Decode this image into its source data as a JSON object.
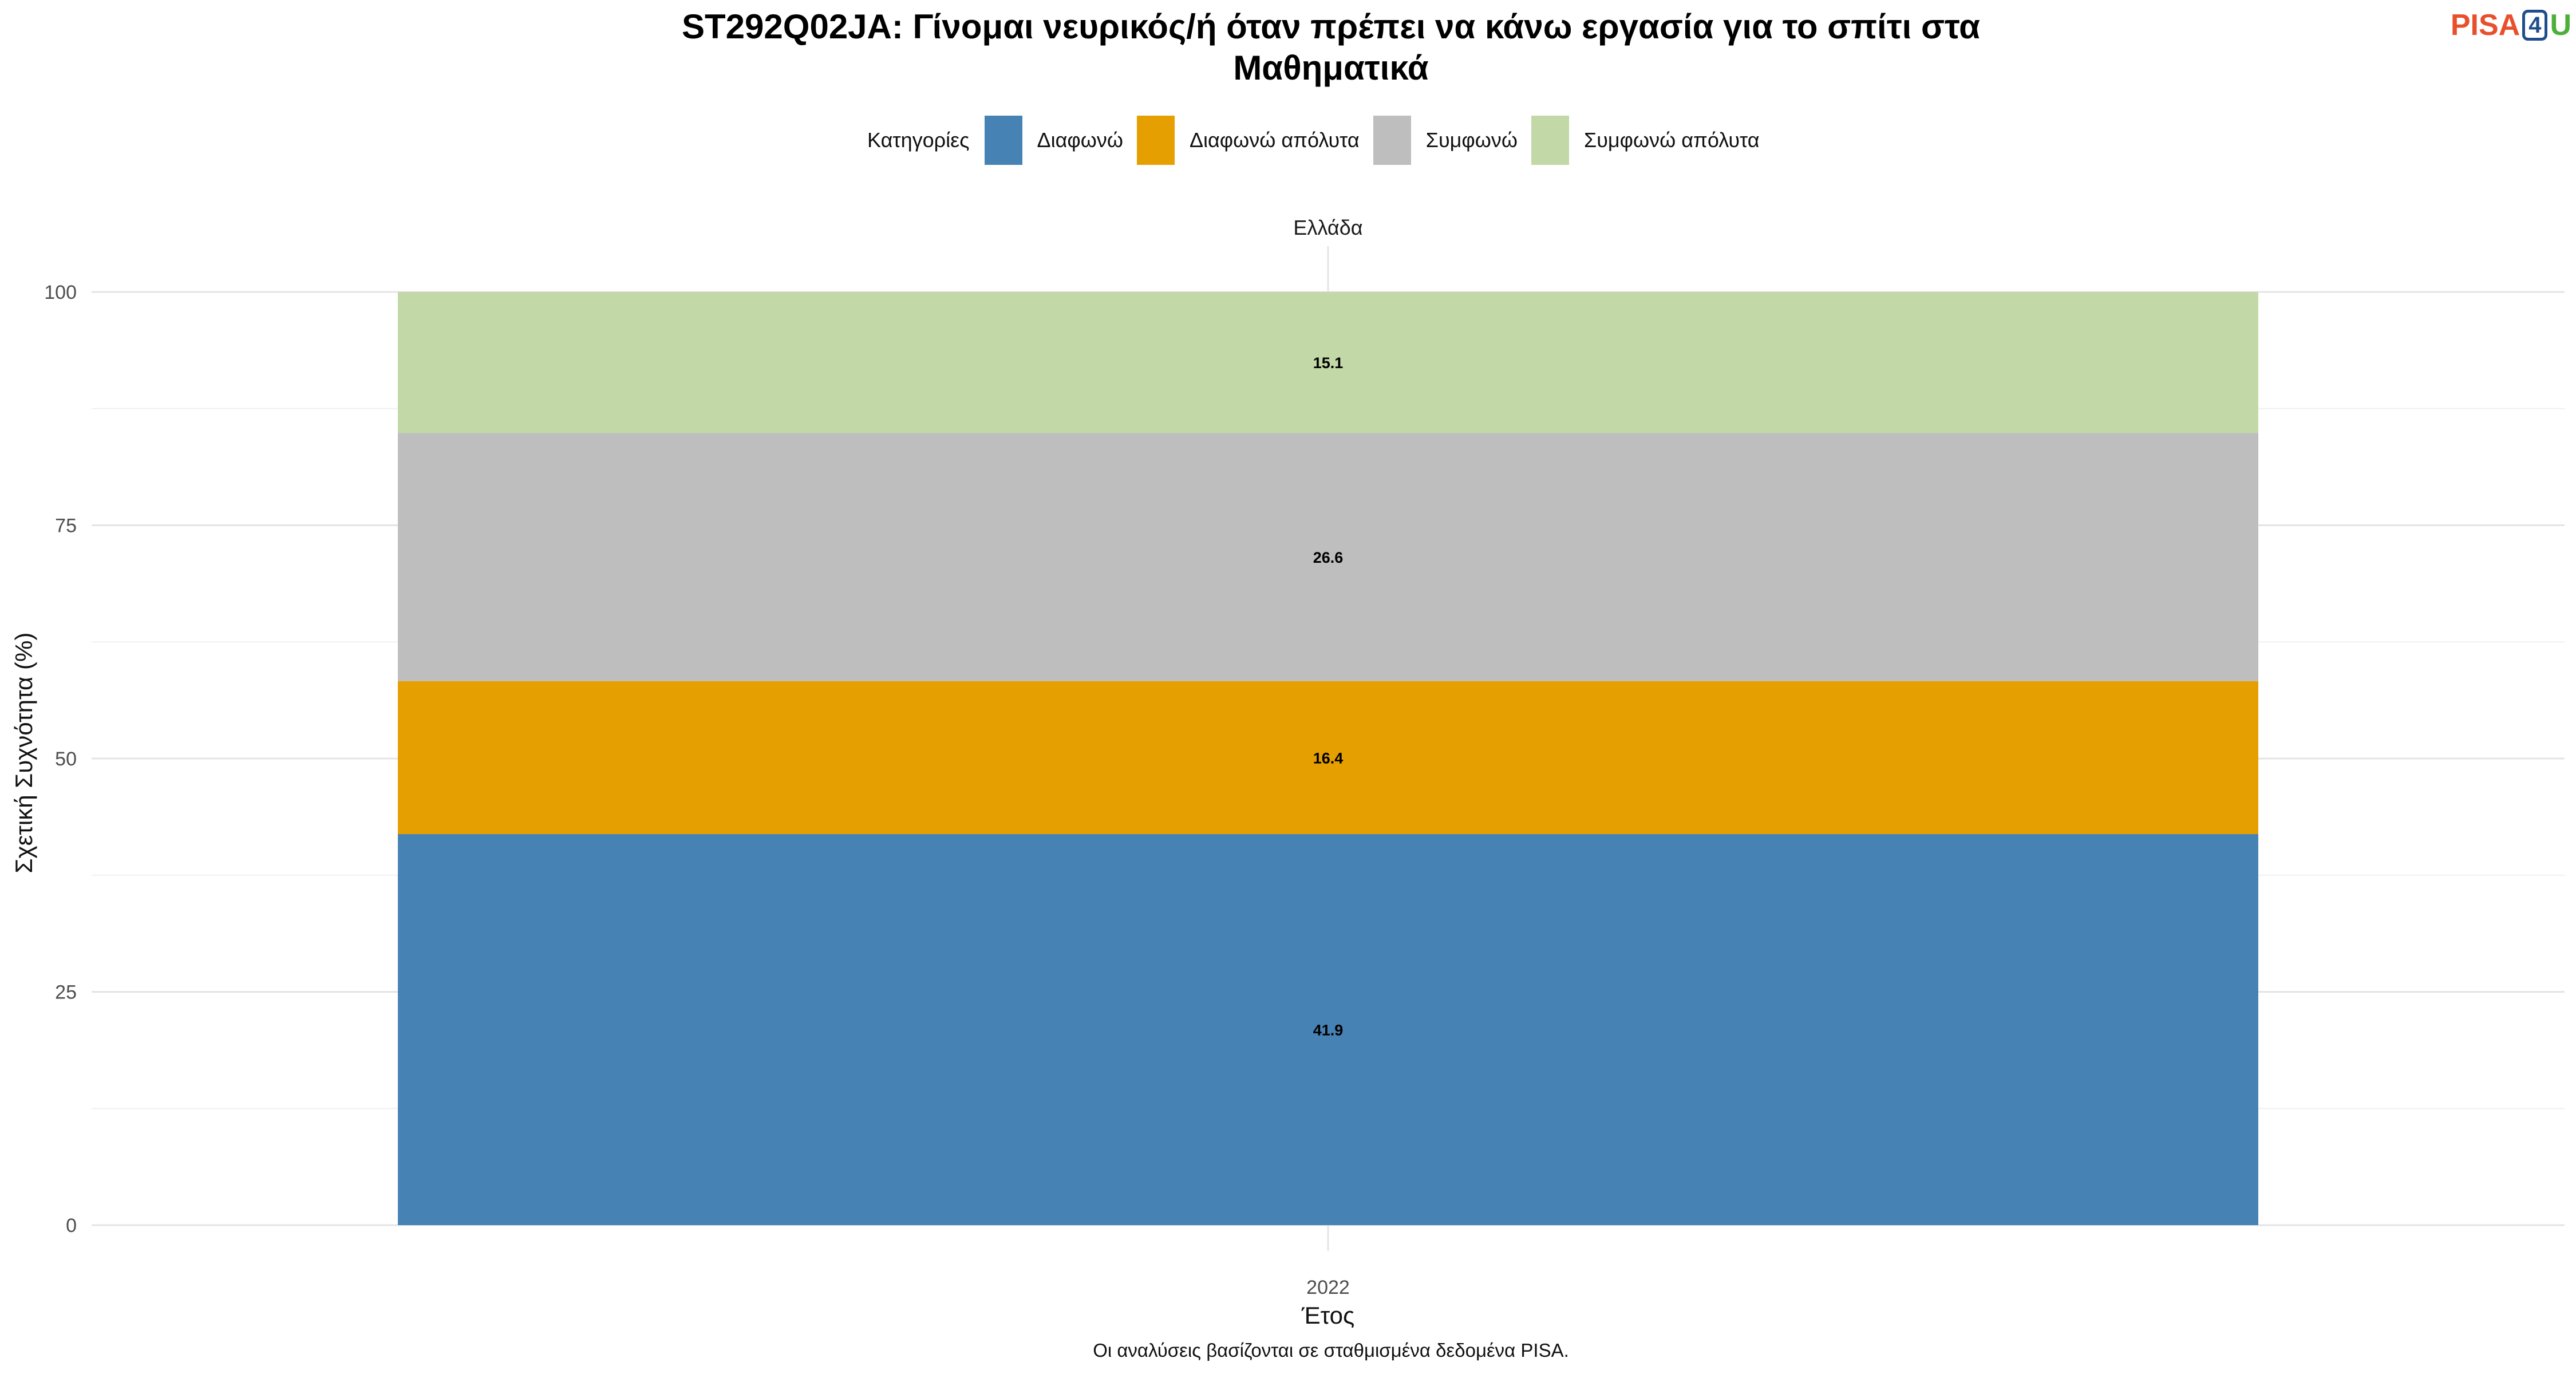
{
  "title_lines": [
    "ST292Q02JA: Γίνομαι νευρικός/ή όταν πρέπει να κάνω εργασία για το σπίτι στα",
    "Μαθηματικά"
  ],
  "logo": {
    "part1": "PISA",
    "part2": "4",
    "part3": "U"
  },
  "caption": "Οι αναλύσεις βασίζονται σε σταθμισμένα δεδομένα PISA.",
  "chart_data": {
    "type": "bar",
    "stacked": true,
    "facet_label": "Ελλάδα",
    "categories": [
      "2022"
    ],
    "xlabel": "Έτος",
    "ylabel": "Σχετική Συχνότητα (%)",
    "ylim": [
      0,
      100
    ],
    "yticks": [
      0,
      25,
      50,
      75,
      100
    ],
    "grid": true,
    "legend": {
      "title": "Κατηγορίες",
      "position": "top"
    },
    "series": [
      {
        "name": "Διαφωνώ",
        "values": [
          41.9
        ],
        "label": "41.9",
        "color": "#4682b4"
      },
      {
        "name": "Διαφωνώ απόλυτα",
        "values": [
          16.4
        ],
        "label": "16.4",
        "color": "#e69f00"
      },
      {
        "name": "Συμφωνώ",
        "values": [
          26.6
        ],
        "label": "26.6",
        "color": "#bebebe"
      },
      {
        "name": "Συμφωνώ απόλυτα",
        "values": [
          15.1
        ],
        "label": "15.1",
        "color": "#c2d8a6"
      }
    ]
  }
}
